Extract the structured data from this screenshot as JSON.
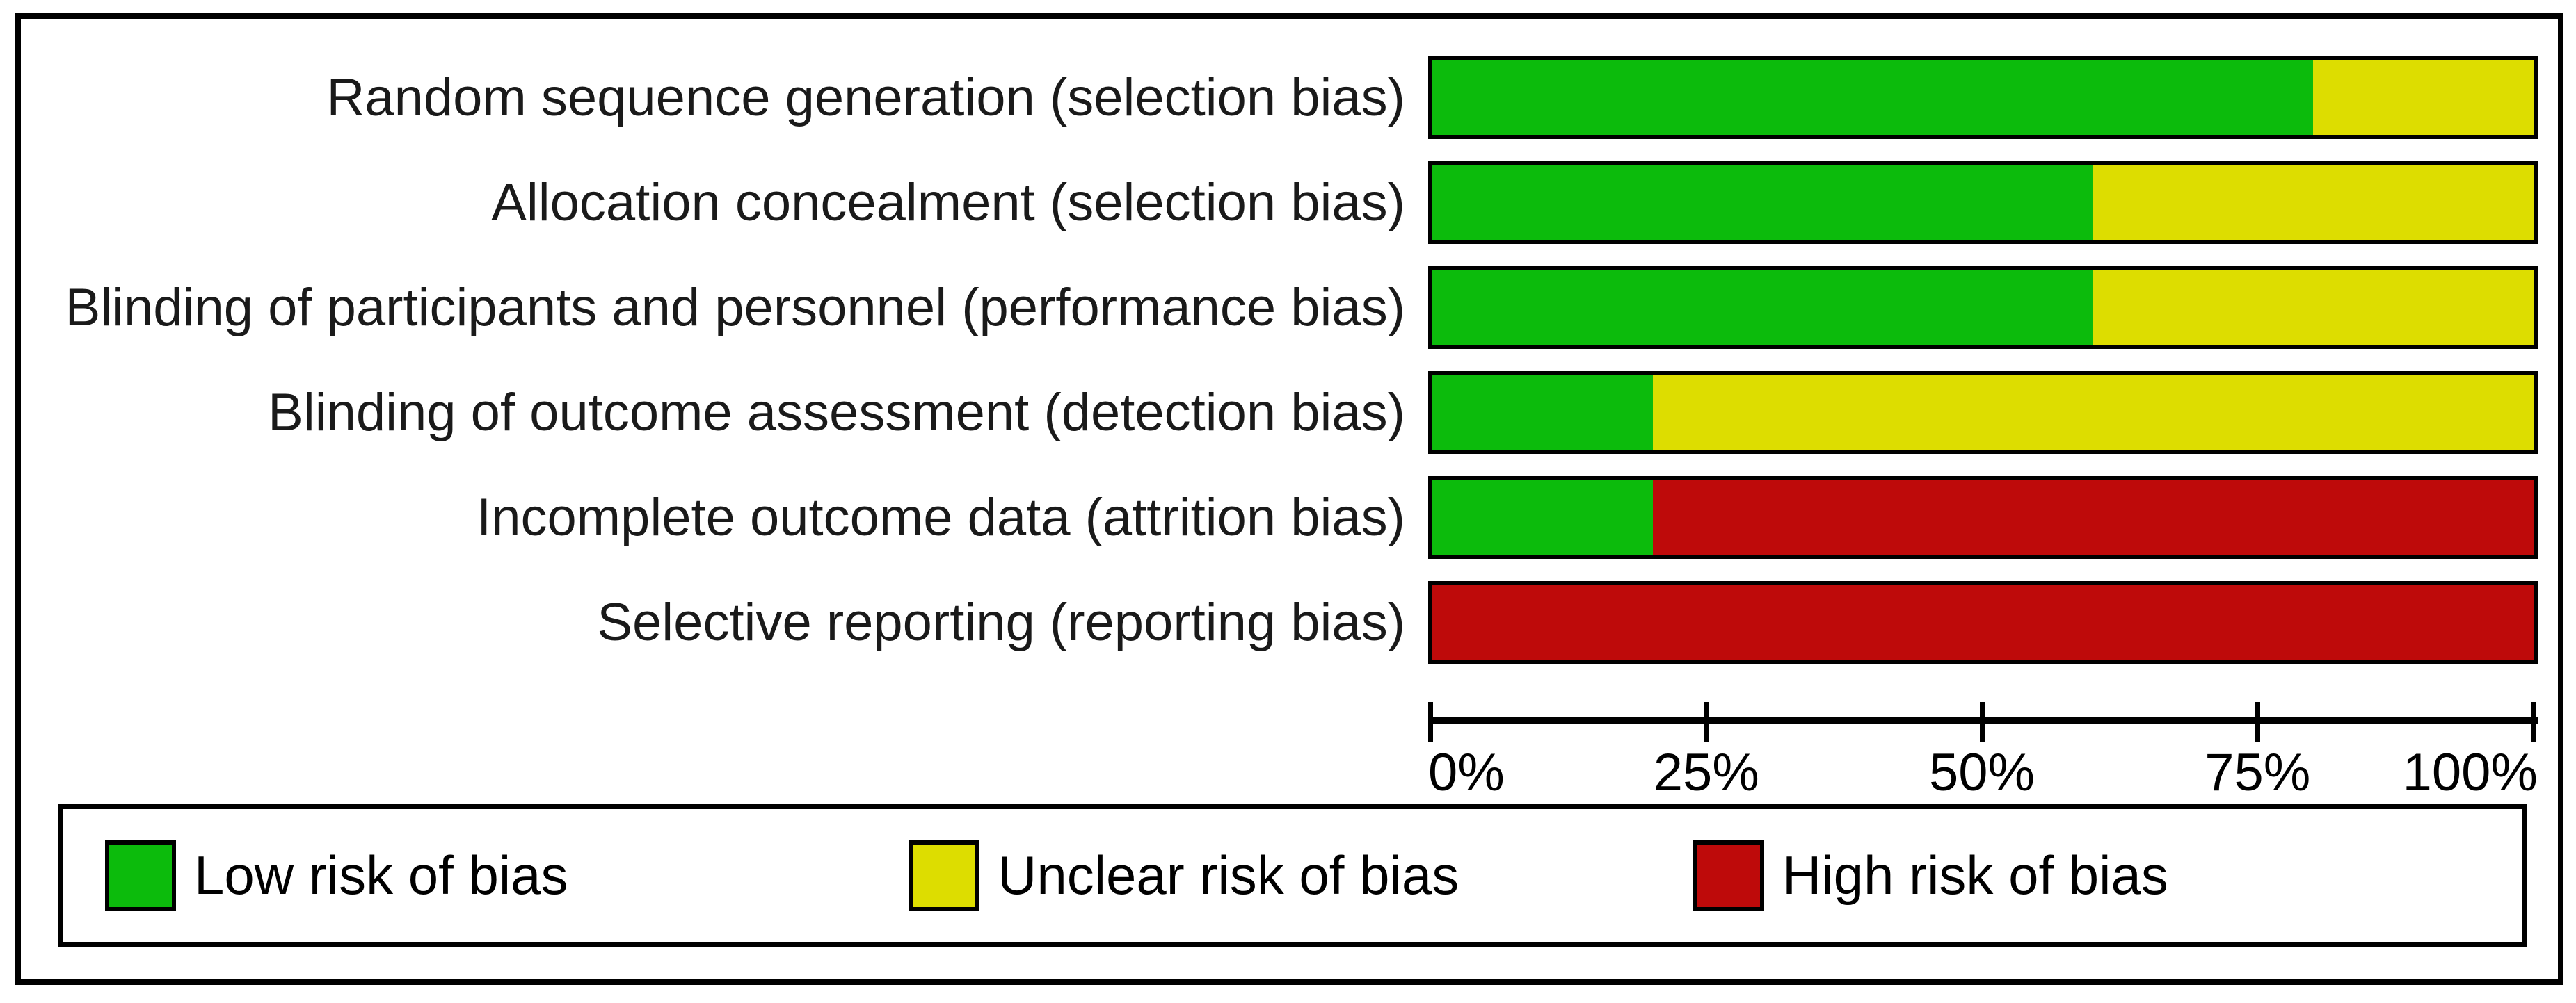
{
  "figure": {
    "kind": "risk-of-bias-graph"
  },
  "chart_data": {
    "type": "bar",
    "orientation": "horizontal-stacked",
    "title": "",
    "xlabel": "",
    "ylabel": "",
    "xlim": [
      0,
      100
    ],
    "grid": false,
    "legend_position": "bottom-box",
    "categories": [
      "Random sequence generation (selection bias)",
      "Allocation concealment (selection bias)",
      "Blinding of participants and personnel (performance bias)",
      "Blinding of outcome assessment (detection bias)",
      "Incomplete outcome data (attrition bias)",
      "Selective reporting (reporting bias)"
    ],
    "series": [
      {
        "name": "Low risk of bias",
        "key": "low",
        "color": "#0CBB0C",
        "values": [
          80,
          60,
          60,
          20,
          20,
          0
        ]
      },
      {
        "name": "Unclear risk of bias",
        "key": "unclear",
        "color": "#DDDD00",
        "values": [
          20,
          40,
          40,
          80,
          0,
          0
        ]
      },
      {
        "name": "High risk of bias",
        "key": "high",
        "color": "#BE0A0A",
        "values": [
          0,
          0,
          0,
          0,
          80,
          100
        ]
      }
    ],
    "x_axis": {
      "ticks": [
        {
          "label": "0%",
          "pct": 0
        },
        {
          "label": "25%",
          "pct": 25
        },
        {
          "label": "50%",
          "pct": 50
        },
        {
          "label": "75%",
          "pct": 75
        },
        {
          "label": "100%",
          "pct": 100
        }
      ]
    },
    "colors": {
      "bar_border": "#000000",
      "frame_border": "#000000",
      "label_text": "#1a1a1a",
      "axis_text": "#000000"
    }
  }
}
